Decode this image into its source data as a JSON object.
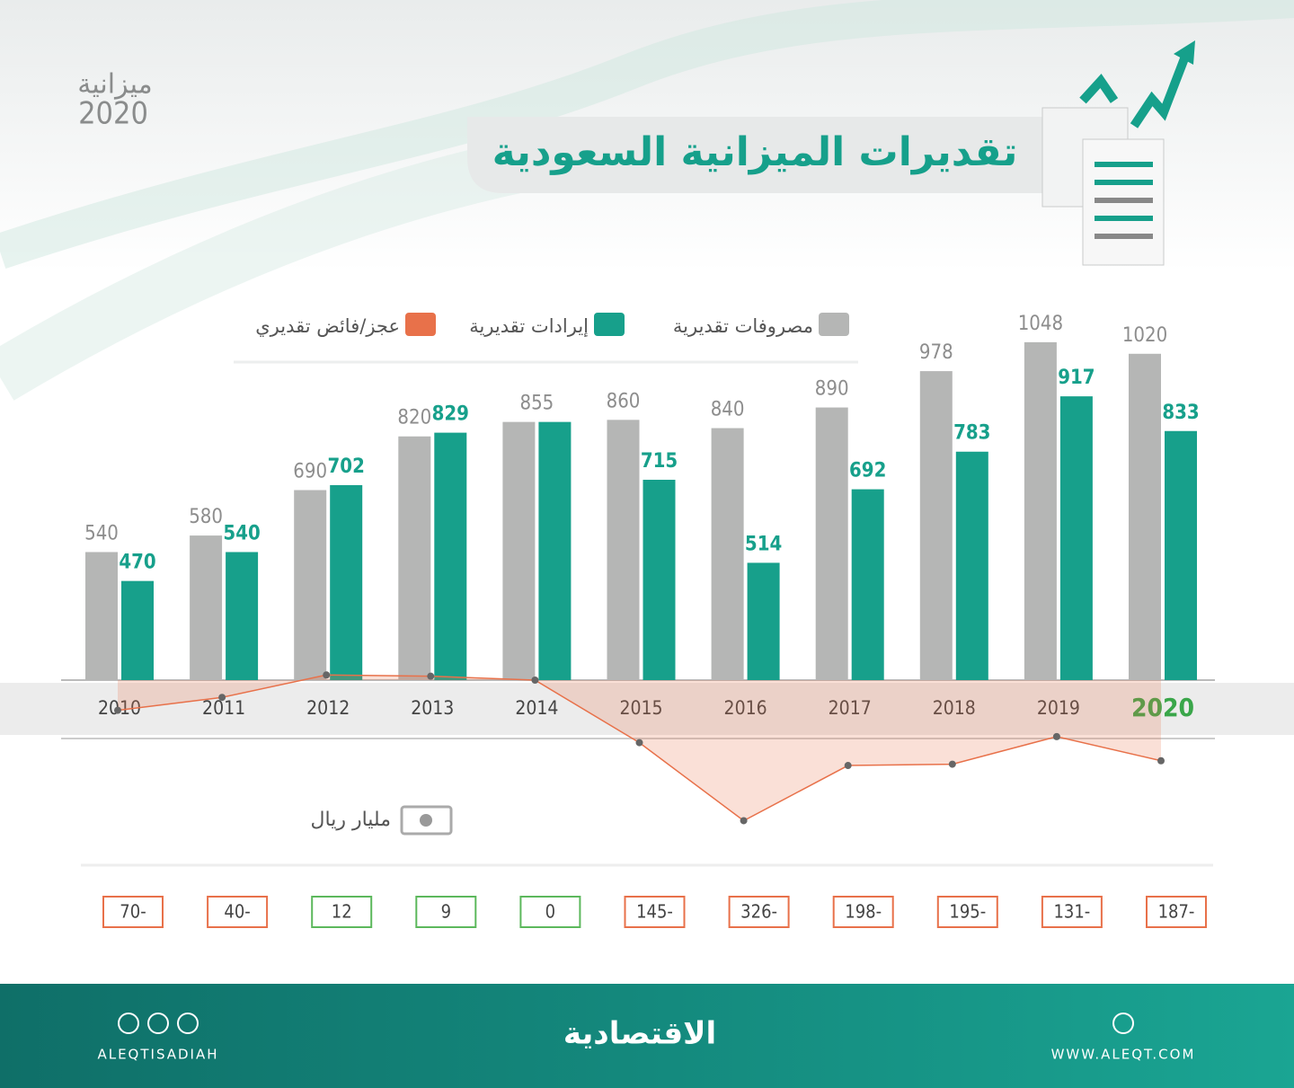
{
  "logo": {
    "name": "ميزانية",
    "year": "2020"
  },
  "chart_data": {
    "type": "bar",
    "title": "تقديرات الميزانية السعودية",
    "unit": "مليار ريال",
    "categories": [
      "2010",
      "2011",
      "2012",
      "2013",
      "2014",
      "2015",
      "2016",
      "2017",
      "2018",
      "2019",
      "2020"
    ],
    "highlight_index": 10,
    "highlight_color": "#3aa64a",
    "ylim": [
      230,
      1100
    ],
    "series": [
      {
        "name": "مصروفات تقديرية",
        "color": "#b5b6b5",
        "values": [
          540,
          580,
          690,
          820,
          855,
          860,
          840,
          890,
          978,
          1048,
          1020
        ]
      },
      {
        "name": "إيرادات تقديرية",
        "color": "#17a08b",
        "values": [
          470,
          540,
          702,
          829,
          855,
          715,
          514,
          692,
          783,
          917,
          833
        ],
        "value_labels": [
          "470",
          "540",
          "702",
          "829",
          null,
          "715",
          "514",
          "692",
          "783",
          "917",
          "833"
        ]
      },
      {
        "name": "عجز/فائض تقديري",
        "type": "line",
        "color": "#e8714a",
        "positive_color": "#5cb85c",
        "negative_color": "#e8714a",
        "values": [
          -70,
          -40,
          12,
          9,
          0,
          -145,
          -326,
          -198,
          -195,
          -131,
          -187
        ],
        "value_labels": [
          "70-",
          "40-",
          "12",
          "9",
          "0",
          "145-",
          "326-",
          "198-",
          "195-",
          "131-",
          "187-"
        ]
      }
    ]
  },
  "footer": {
    "social": "ALEQTISADIAH",
    "brand": "الاقتصادية",
    "site": "WWW.ALEQT.COM"
  }
}
